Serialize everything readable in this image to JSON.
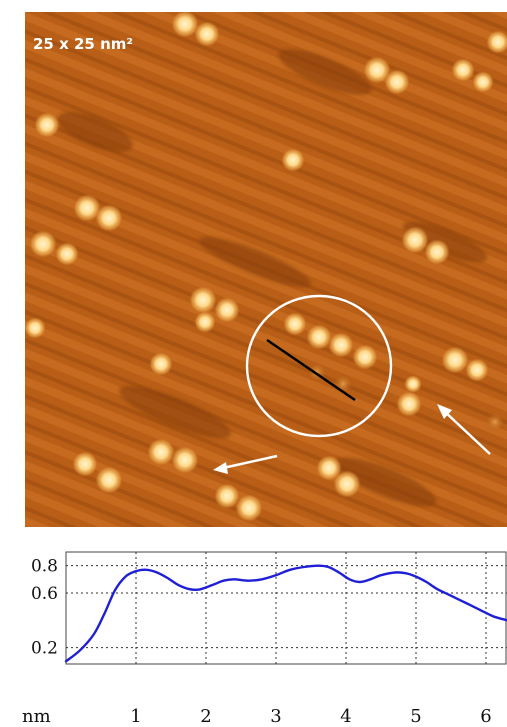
{
  "stm_image": {
    "scale_label": "25 x 25 nm²",
    "colors": {
      "background": "#b85e16",
      "dark": "#7a3808",
      "bright": "#ffe6b0",
      "annotation": "#ffffff",
      "line_marker": "#000000"
    },
    "annotations": [
      "circle",
      "line-marker",
      "arrow-left",
      "arrow-right"
    ]
  },
  "chart_data": {
    "type": "line",
    "title": "",
    "xlabel": "nm",
    "ylabel": "",
    "xlim": [
      0,
      6.3
    ],
    "ylim": [
      0.08,
      0.9
    ],
    "x_ticks": [
      1,
      2,
      3,
      4,
      5,
      6
    ],
    "y_ticks": [
      0.2,
      0.6,
      0.8
    ],
    "x_tick_labels": [
      "1",
      "2",
      "3",
      "4",
      "5",
      "6"
    ],
    "y_tick_labels": [
      "0.2",
      "0.6",
      "0.8"
    ],
    "grid": true,
    "line_color": "#1f1fd6",
    "series": [
      {
        "x": [
          0,
          0.2,
          0.4,
          0.55,
          0.7,
          0.85,
          1.0,
          1.15,
          1.3,
          1.45,
          1.6,
          1.75,
          1.9,
          2.1,
          2.25,
          2.4,
          2.6,
          2.8,
          3.0,
          3.2,
          3.4,
          3.6,
          3.75,
          3.9,
          4.05,
          4.2,
          4.35,
          4.5,
          4.7,
          4.85,
          5.0,
          5.15,
          5.3,
          5.5,
          5.7,
          5.9,
          6.1,
          6.3
        ],
        "y": [
          0.1,
          0.18,
          0.3,
          0.45,
          0.62,
          0.72,
          0.76,
          0.77,
          0.75,
          0.71,
          0.66,
          0.63,
          0.625,
          0.66,
          0.69,
          0.7,
          0.69,
          0.7,
          0.73,
          0.77,
          0.79,
          0.8,
          0.79,
          0.75,
          0.7,
          0.68,
          0.7,
          0.73,
          0.75,
          0.745,
          0.72,
          0.68,
          0.63,
          0.58,
          0.53,
          0.48,
          0.43,
          0.4
        ]
      }
    ]
  }
}
